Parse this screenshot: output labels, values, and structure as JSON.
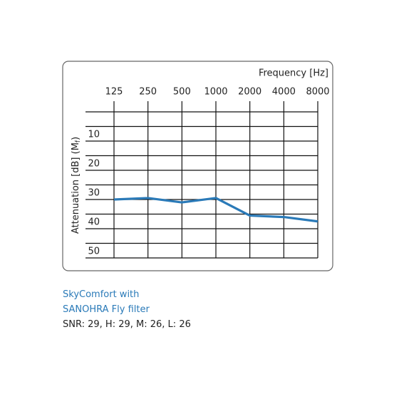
{
  "chart_data": {
    "type": "line",
    "xlabel": "Frequency [Hz]",
    "ylabel_parts": [
      "Attenuation [dB] (M",
      "f",
      ")"
    ],
    "categories": [
      "125",
      "250",
      "500",
      "1000",
      "2000",
      "4000",
      "8000"
    ],
    "series": [
      {
        "color": "#2a7ab8",
        "values": [
          30,
          29.5,
          31,
          29.5,
          35.5,
          36,
          37.5
        ]
      }
    ],
    "ylim": [
      0,
      50
    ],
    "y_inverted": true,
    "yticks": [
      10,
      20,
      30,
      40,
      50
    ],
    "ygrid": [
      0,
      5,
      10,
      15,
      20,
      25,
      30,
      35,
      40,
      45,
      50
    ],
    "grid": true
  },
  "caption": {
    "lines": [
      "SkyComfort with",
      "SANOHRA Fly filter"
    ],
    "color": "#2a7ab8",
    "rating": "SNR: 29, H: 29, M: 26, L: 26"
  }
}
